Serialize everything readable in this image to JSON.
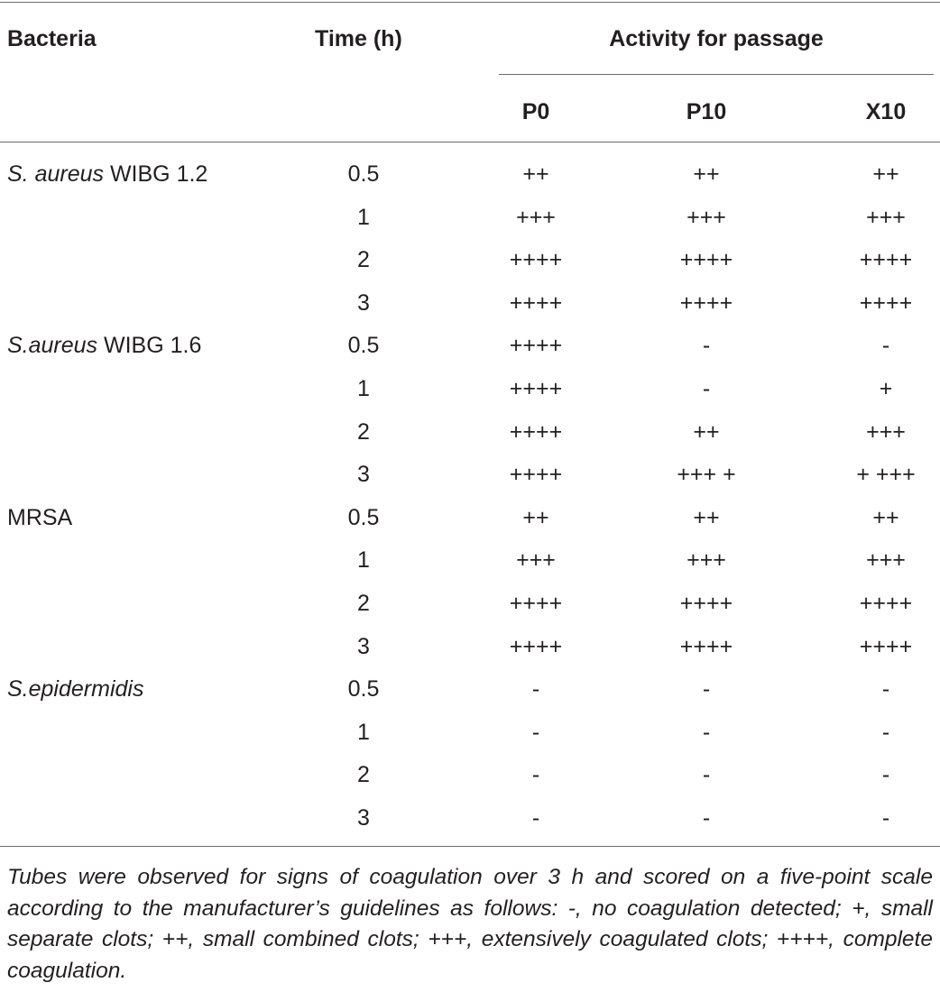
{
  "table": {
    "headers": {
      "bacteria": "Bacteria",
      "time": "Time (h)",
      "activity": "Activity for passage",
      "p0": "P0",
      "p10": "P10",
      "x10": "X10"
    },
    "rows": [
      {
        "bacteria_italic": "S. aureus",
        "bacteria_rest": " WIBG 1.2",
        "time": "0.5",
        "p0": "++",
        "p10": "++",
        "x10": "++"
      },
      {
        "bacteria_italic": "",
        "bacteria_rest": "",
        "time": "1",
        "p0": "+++",
        "p10": "+++",
        "x10": "+++"
      },
      {
        "bacteria_italic": "",
        "bacteria_rest": "",
        "time": "2",
        "p0": "++++",
        "p10": "++++",
        "x10": "++++"
      },
      {
        "bacteria_italic": "",
        "bacteria_rest": "",
        "time": "3",
        "p0": "++++",
        "p10": "++++",
        "x10": "++++"
      },
      {
        "bacteria_italic": "S.aureus",
        "bacteria_rest": " WIBG 1.6",
        "time": "0.5",
        "p0": "++++",
        "p10": "-",
        "x10": "-"
      },
      {
        "bacteria_italic": "",
        "bacteria_rest": "",
        "time": "1",
        "p0": "++++",
        "p10": "-",
        "x10": "+"
      },
      {
        "bacteria_italic": "",
        "bacteria_rest": "",
        "time": "2",
        "p0": "++++",
        "p10": "++",
        "x10": "+++"
      },
      {
        "bacteria_italic": "",
        "bacteria_rest": "",
        "time": "3",
        "p0": "++++",
        "p10": "+++ +",
        "x10": "+ +++"
      },
      {
        "bacteria_italic": "",
        "bacteria_rest": "MRSA",
        "time": "0.5",
        "p0": "++",
        "p10": "++",
        "x10": "++"
      },
      {
        "bacteria_italic": "",
        "bacteria_rest": "",
        "time": "1",
        "p0": "+++",
        "p10": "+++",
        "x10": "+++"
      },
      {
        "bacteria_italic": "",
        "bacteria_rest": "",
        "time": "2",
        "p0": "++++",
        "p10": "++++",
        "x10": "++++"
      },
      {
        "bacteria_italic": "",
        "bacteria_rest": "",
        "time": "3",
        "p0": "++++",
        "p10": "++++",
        "x10": "++++"
      },
      {
        "bacteria_italic": "S.epidermidis",
        "bacteria_rest": "",
        "time": "0.5",
        "p0": "-",
        "p10": "-",
        "x10": "-"
      },
      {
        "bacteria_italic": "",
        "bacteria_rest": "",
        "time": "1",
        "p0": "-",
        "p10": "-",
        "x10": "-"
      },
      {
        "bacteria_italic": "",
        "bacteria_rest": "",
        "time": "2",
        "p0": "-",
        "p10": "-",
        "x10": "-"
      },
      {
        "bacteria_italic": "",
        "bacteria_rest": "",
        "time": "3",
        "p0": "-",
        "p10": "-",
        "x10": "-"
      }
    ]
  },
  "footnote": "Tubes were observed for signs of coagulation over 3 h and scored on a five-point scale according to the manufacturer’s guidelines as follows: -, no coagulation detected; +, small separate clots; ++, small combined clots; +++, extensively coagulated clots; ++++, complete coagulation."
}
